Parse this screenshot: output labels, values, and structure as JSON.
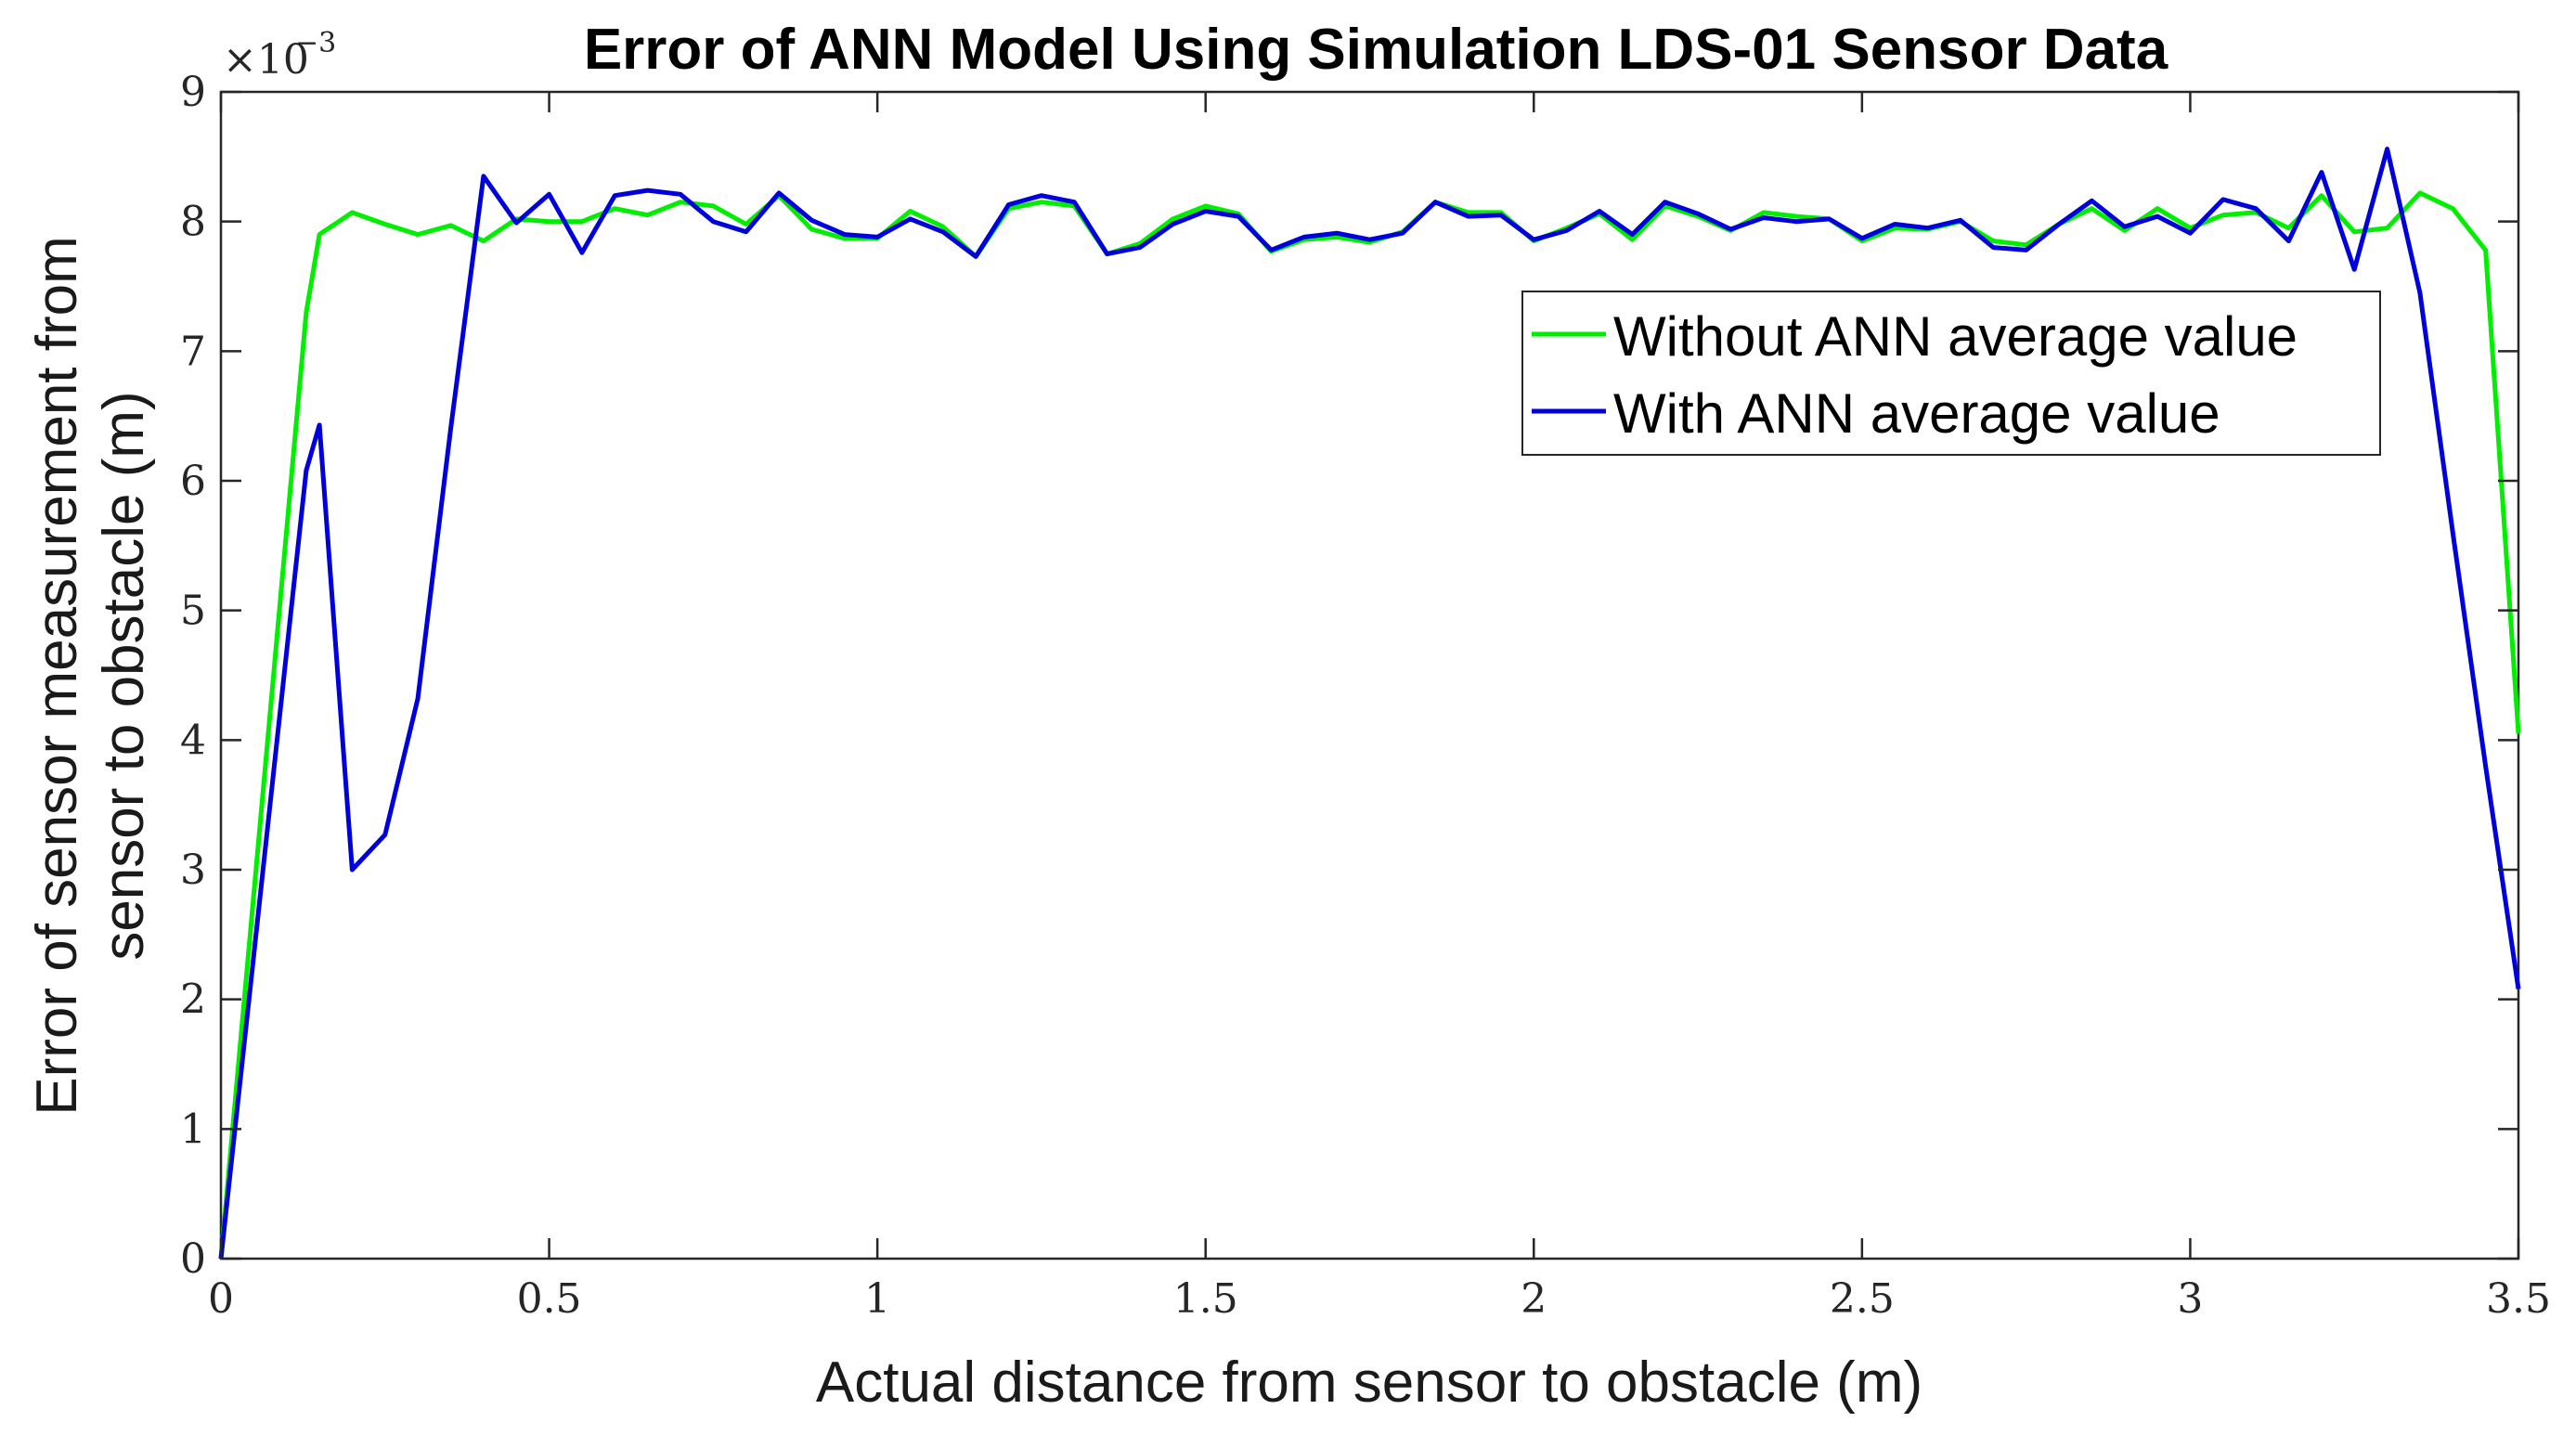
{
  "chart_data": {
    "type": "line",
    "title": "Error of ANN Model Using Simulation LDS-01 Sensor Data",
    "xlabel": "Actual distance from sensor to obstacle (m)",
    "ylabel_lines": [
      "Error of sensor measurement from",
      "sensor to obstacle (m)"
    ],
    "y_multiplier": {
      "base": "×10",
      "exponent": "−3"
    },
    "xlim": [
      0,
      3.5
    ],
    "ylim": [
      0,
      9
    ],
    "x_ticks": [
      0,
      0.5,
      1,
      1.5,
      2,
      2.5,
      3,
      3.5
    ],
    "x_tick_labels": [
      "0",
      "0.5",
      "1",
      "1.5",
      "2",
      "2.5",
      "3",
      "3.5"
    ],
    "y_ticks": [
      0,
      1,
      2,
      3,
      4,
      5,
      6,
      7,
      8,
      9
    ],
    "y_tick_labels": [
      "0",
      "1",
      "2",
      "3",
      "4",
      "5",
      "6",
      "7",
      "8",
      "9"
    ],
    "grid": false,
    "legend_position": "top-right",
    "series": [
      {
        "name": "Without ANN average value",
        "color": "#00ee00",
        "points": [
          [
            0,
            0
          ],
          [
            0.13,
            7.3
          ],
          [
            0.15,
            7.9
          ],
          [
            0.2,
            8.07
          ],
          [
            0.25,
            7.98
          ],
          [
            0.3,
            7.9
          ],
          [
            0.35,
            7.97
          ],
          [
            0.4,
            7.85
          ],
          [
            0.45,
            8.02
          ],
          [
            0.5,
            8.0
          ],
          [
            0.55,
            8.0
          ],
          [
            0.6,
            8.1
          ],
          [
            0.65,
            8.05
          ],
          [
            0.7,
            8.15
          ],
          [
            0.75,
            8.12
          ],
          [
            0.8,
            7.98
          ],
          [
            0.85,
            8.2
          ],
          [
            0.9,
            7.94
          ],
          [
            0.95,
            7.87
          ],
          [
            1.0,
            7.87
          ],
          [
            1.05,
            8.08
          ],
          [
            1.1,
            7.96
          ],
          [
            1.15,
            7.73
          ],
          [
            1.2,
            8.1
          ],
          [
            1.25,
            8.15
          ],
          [
            1.3,
            8.12
          ],
          [
            1.35,
            7.75
          ],
          [
            1.4,
            7.83
          ],
          [
            1.45,
            8.02
          ],
          [
            1.5,
            8.12
          ],
          [
            1.55,
            8.06
          ],
          [
            1.6,
            7.77
          ],
          [
            1.65,
            7.86
          ],
          [
            1.7,
            7.88
          ],
          [
            1.75,
            7.84
          ],
          [
            1.8,
            7.92
          ],
          [
            1.85,
            8.15
          ],
          [
            1.9,
            8.07
          ],
          [
            1.95,
            8.07
          ],
          [
            2.0,
            7.85
          ],
          [
            2.05,
            7.95
          ],
          [
            2.1,
            8.06
          ],
          [
            2.15,
            7.86
          ],
          [
            2.2,
            8.12
          ],
          [
            2.25,
            8.04
          ],
          [
            2.3,
            7.93
          ],
          [
            2.35,
            8.07
          ],
          [
            2.4,
            8.04
          ],
          [
            2.45,
            8.02
          ],
          [
            2.5,
            7.85
          ],
          [
            2.55,
            7.95
          ],
          [
            2.6,
            7.94
          ],
          [
            2.65,
            8.0
          ],
          [
            2.7,
            7.85
          ],
          [
            2.75,
            7.82
          ],
          [
            2.8,
            7.98
          ],
          [
            2.85,
            8.1
          ],
          [
            2.9,
            7.93
          ],
          [
            2.95,
            8.1
          ],
          [
            3.0,
            7.95
          ],
          [
            3.05,
            8.05
          ],
          [
            3.1,
            8.07
          ],
          [
            3.15,
            7.95
          ],
          [
            3.2,
            8.2
          ],
          [
            3.25,
            7.92
          ],
          [
            3.3,
            7.95
          ],
          [
            3.35,
            8.22
          ],
          [
            3.4,
            8.1
          ],
          [
            3.45,
            7.78
          ],
          [
            3.5,
            4.05
          ]
        ]
      },
      {
        "name": "With ANN average value",
        "color": "#0000dd",
        "points": [
          [
            0,
            0
          ],
          [
            0.13,
            6.08
          ],
          [
            0.15,
            6.43
          ],
          [
            0.2,
            3.0
          ],
          [
            0.25,
            3.27
          ],
          [
            0.3,
            4.32
          ],
          [
            0.35,
            6.4
          ],
          [
            0.4,
            8.35
          ],
          [
            0.45,
            7.99
          ],
          [
            0.5,
            8.21
          ],
          [
            0.55,
            7.76
          ],
          [
            0.6,
            8.2
          ],
          [
            0.65,
            8.24
          ],
          [
            0.7,
            8.21
          ],
          [
            0.75,
            8.0
          ],
          [
            0.8,
            7.92
          ],
          [
            0.85,
            8.22
          ],
          [
            0.9,
            8.01
          ],
          [
            0.95,
            7.9
          ],
          [
            1.0,
            7.88
          ],
          [
            1.05,
            8.02
          ],
          [
            1.1,
            7.92
          ],
          [
            1.15,
            7.73
          ],
          [
            1.2,
            8.13
          ],
          [
            1.25,
            8.2
          ],
          [
            1.3,
            8.15
          ],
          [
            1.35,
            7.75
          ],
          [
            1.4,
            7.8
          ],
          [
            1.45,
            7.98
          ],
          [
            1.5,
            8.08
          ],
          [
            1.55,
            8.04
          ],
          [
            1.6,
            7.78
          ],
          [
            1.65,
            7.88
          ],
          [
            1.7,
            7.91
          ],
          [
            1.75,
            7.86
          ],
          [
            1.8,
            7.91
          ],
          [
            1.85,
            8.15
          ],
          [
            1.9,
            8.04
          ],
          [
            1.95,
            8.05
          ],
          [
            2.0,
            7.86
          ],
          [
            2.05,
            7.93
          ],
          [
            2.1,
            8.08
          ],
          [
            2.15,
            7.9
          ],
          [
            2.2,
            8.15
          ],
          [
            2.25,
            8.06
          ],
          [
            2.3,
            7.94
          ],
          [
            2.35,
            8.03
          ],
          [
            2.4,
            8.0
          ],
          [
            2.45,
            8.02
          ],
          [
            2.5,
            7.87
          ],
          [
            2.55,
            7.98
          ],
          [
            2.6,
            7.95
          ],
          [
            2.65,
            8.01
          ],
          [
            2.7,
            7.8
          ],
          [
            2.75,
            7.78
          ],
          [
            2.8,
            7.98
          ],
          [
            2.85,
            8.16
          ],
          [
            2.9,
            7.96
          ],
          [
            2.95,
            8.04
          ],
          [
            3.0,
            7.91
          ],
          [
            3.05,
            8.17
          ],
          [
            3.1,
            8.1
          ],
          [
            3.15,
            7.85
          ],
          [
            3.2,
            8.38
          ],
          [
            3.25,
            7.63
          ],
          [
            3.3,
            8.56
          ],
          [
            3.35,
            7.45
          ],
          [
            3.4,
            5.6
          ],
          [
            3.45,
            3.8
          ],
          [
            3.5,
            2.08
          ]
        ]
      }
    ]
  }
}
